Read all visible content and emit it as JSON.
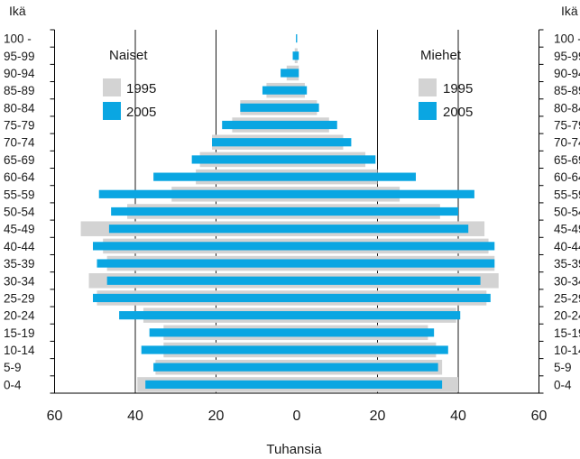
{
  "colors": {
    "series_1995": "#d3d3d3",
    "series_2005": "#0aa6e2",
    "axis": "#000000",
    "grid": "#000000"
  },
  "chart_data": {
    "type": "bar",
    "orientation": "horizontal",
    "layout": "population-pyramid",
    "ylabel_left": "Ikä",
    "ylabel_right": "Ikä",
    "xlabel": "Tuhansia",
    "xlim": [
      -60,
      60
    ],
    "x_ticks": [
      60,
      40,
      20,
      0,
      20,
      40,
      60
    ],
    "grid": "vertical at 20 and 40 each side",
    "categories": [
      "0-4",
      "5-9",
      "10-14",
      "15-19",
      "20-24",
      "25-29",
      "30-34",
      "35-39",
      "40-44",
      "45-49",
      "50-54",
      "55-59",
      "60-64",
      "65-69",
      "70-74",
      "75-79",
      "80-84",
      "85-89",
      "90-94",
      "95-99",
      "100 -"
    ],
    "legends": [
      {
        "title": "Naiset",
        "items": [
          "1995",
          "2005"
        ],
        "placement": "top-left"
      },
      {
        "title": "Miehet",
        "items": [
          "1995",
          "2005"
        ],
        "placement": "top-right"
      }
    ],
    "series": [
      {
        "name": "1995",
        "side": "Naiset",
        "values": [
          39.5,
          35.0,
          33.0,
          33.0,
          38.0,
          49.5,
          51.5,
          47.0,
          48.0,
          53.5,
          42.0,
          31.0,
          25.0,
          24.0,
          21.0,
          16.0,
          14.0,
          7.5,
          2.5,
          0.5,
          0
        ]
      },
      {
        "name": "2005",
        "side": "Naiset",
        "values": [
          37.5,
          35.5,
          38.5,
          36.5,
          44.0,
          50.5,
          47.0,
          49.5,
          50.5,
          46.5,
          46.0,
          49.0,
          35.5,
          26.0,
          21.0,
          18.5,
          14.0,
          8.5,
          4.0,
          1.0,
          0.2
        ]
      },
      {
        "name": "1995",
        "side": "Miehet",
        "values": [
          40.0,
          36.0,
          34.5,
          32.5,
          39.5,
          47.0,
          50.0,
          49.0,
          47.5,
          46.5,
          35.5,
          25.5,
          20.0,
          17.0,
          11.5,
          8.0,
          5.0,
          2.0,
          0.5,
          0.2,
          0
        ]
      },
      {
        "name": "2005",
        "side": "Miehet",
        "values": [
          36.0,
          35.0,
          37.5,
          34.0,
          40.5,
          48.0,
          45.5,
          49.0,
          49.0,
          42.5,
          40.0,
          44.0,
          29.5,
          19.5,
          13.5,
          10.0,
          5.5,
          2.5,
          0.5,
          0.5,
          0.1
        ]
      }
    ]
  }
}
